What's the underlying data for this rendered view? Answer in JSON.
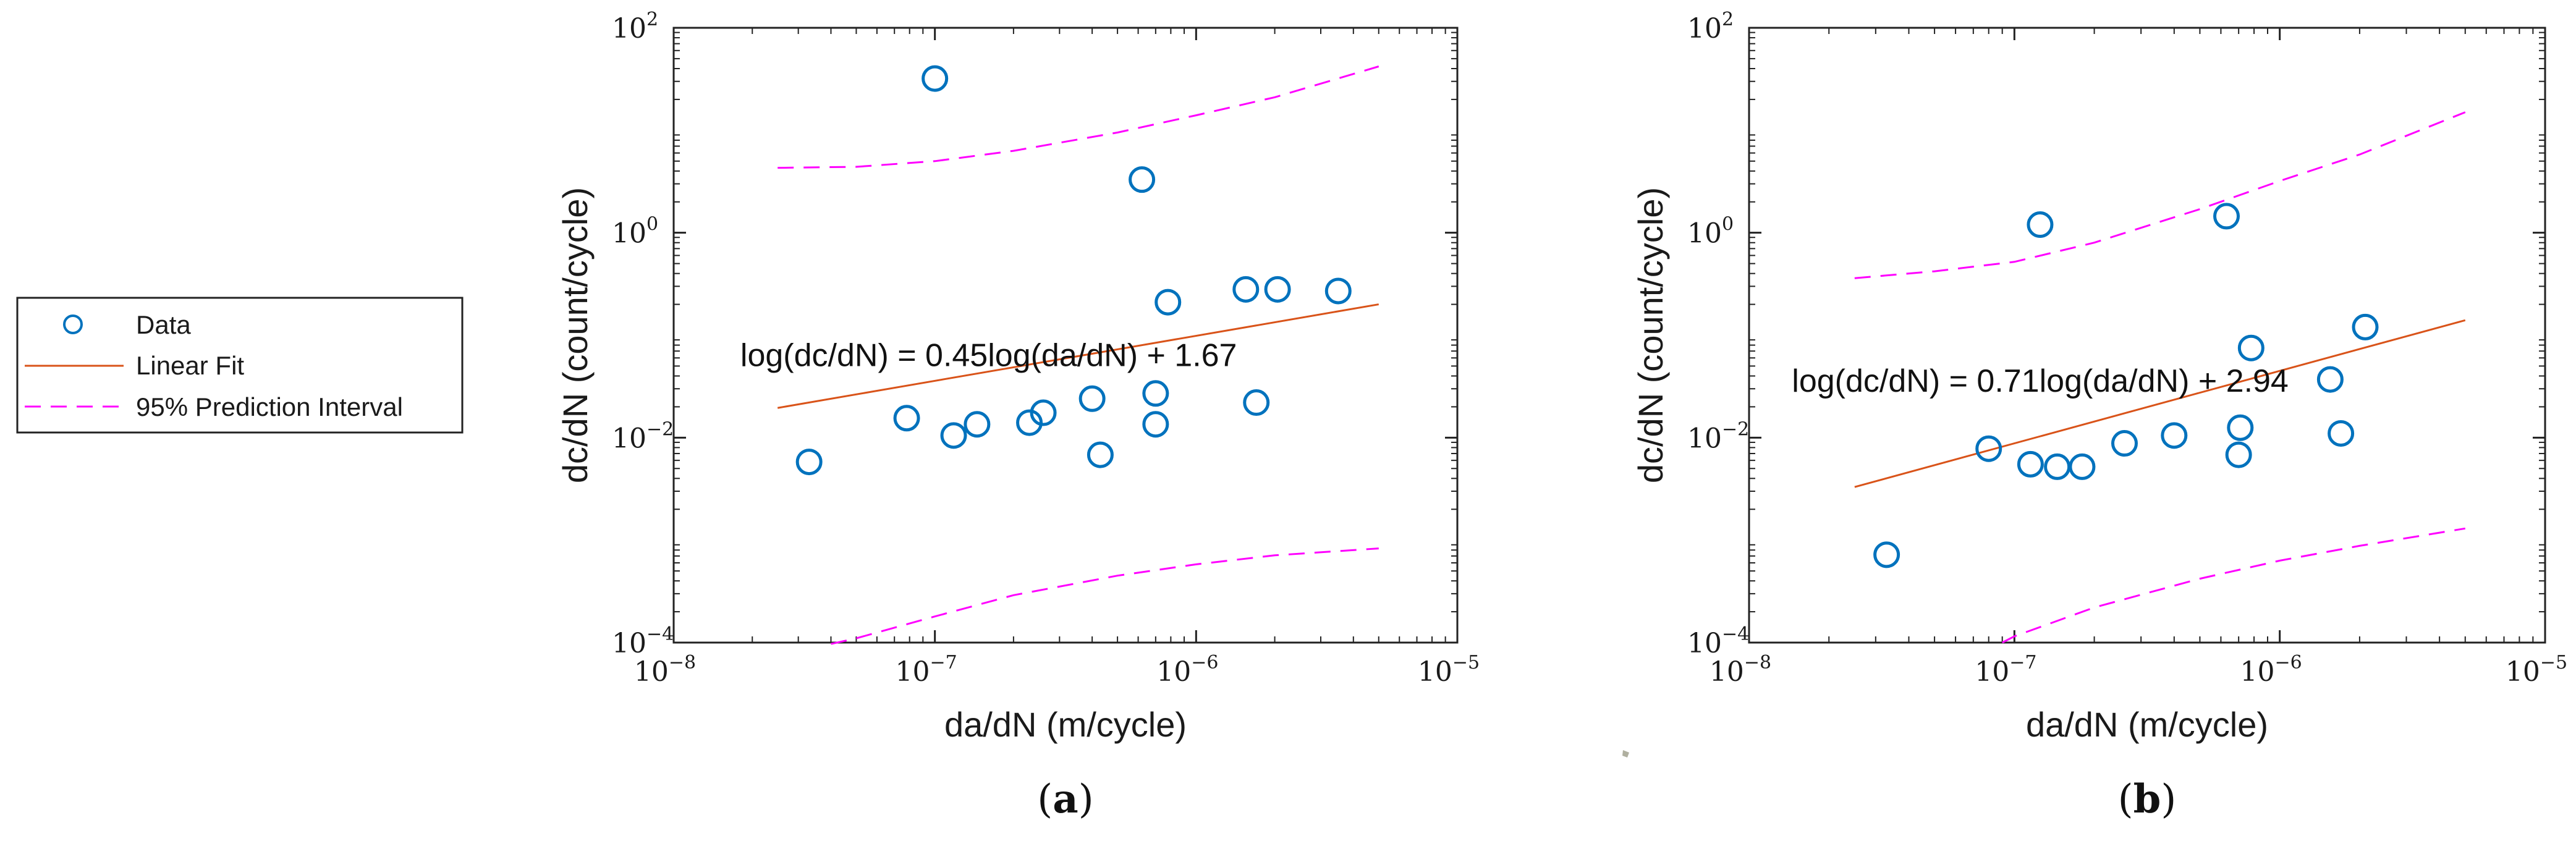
{
  "legend": {
    "entries": [
      {
        "label": "Data",
        "style": "marker",
        "color": "#0072bd"
      },
      {
        "label": "Linear Fit",
        "style": "line",
        "color": "#d95319"
      },
      {
        "label": "95% Prediction Interval",
        "style": "dashed",
        "color": "#ff00ff"
      }
    ]
  },
  "chart_data": [
    {
      "panel_label": "(a)",
      "panel_letter": "a",
      "type": "scatter",
      "xscale": "log",
      "yscale": "log",
      "xlabel": "da/dN (m/cycle)",
      "ylabel": "dc/dN (count/cycle)",
      "xlim": [
        1e-08,
        1e-05
      ],
      "ylim": [
        0.0001,
        100
      ],
      "xticks": [
        {
          "base": "10",
          "exp": "−8",
          "value": 1e-08
        },
        {
          "base": "10",
          "exp": "−7",
          "value": 1e-07
        },
        {
          "base": "10",
          "exp": "−6",
          "value": 1e-06
        },
        {
          "base": "10",
          "exp": "−5",
          "value": 1e-05
        }
      ],
      "yticks": [
        {
          "base": "10",
          "exp": "−4",
          "value": 0.0001
        },
        {
          "base": "10",
          "exp": "−2",
          "value": 0.01
        },
        {
          "base": "10",
          "exp": "0",
          "value": 1
        },
        {
          "base": "10",
          "exp": "2",
          "value": 100
        }
      ],
      "grid": false,
      "equation": "log(dc/dN) = 0.45log(da/dN) + 1.67",
      "equation_pos": [
        1.8e-08,
        0.05
      ],
      "points": [
        [
          3.3e-08,
          0.0058
        ],
        [
          7.8e-08,
          0.0155
        ],
        [
          1e-07,
          32.0
        ],
        [
          1.18e-07,
          0.0105
        ],
        [
          1.45e-07,
          0.0135
        ],
        [
          2.3e-07,
          0.014
        ],
        [
          2.6e-07,
          0.0175
        ],
        [
          4e-07,
          0.024
        ],
        [
          4.3e-07,
          0.0068
        ],
        [
          6.2e-07,
          3.3
        ],
        [
          7e-07,
          0.0135
        ],
        [
          7e-07,
          0.027
        ],
        [
          7.8e-07,
          0.21
        ],
        [
          1.55e-06,
          0.28
        ],
        [
          1.7e-06,
          0.022
        ],
        [
          2.05e-06,
          0.28
        ],
        [
          3.5e-06,
          0.27
        ]
      ],
      "fit_line": [
        [
          2.5e-08,
          0.0195
        ],
        [
          5e-06
        ],
        [
          0.2
        ]
      ],
      "fit": {
        "x": [
          2.5e-08,
          5e-06
        ],
        "y": [
          0.0195,
          0.2
        ]
      },
      "pi_upper": {
        "x": [
          2.5e-08,
          5e-08,
          1e-07,
          2e-07,
          5e-07,
          1e-06,
          2e-06,
          5e-06
        ],
        "y": [
          4.3,
          4.4,
          5.0,
          6.3,
          9.5,
          14.0,
          21.0,
          42.0
        ]
      },
      "pi_lower": {
        "x": [
          4e-08,
          5e-08,
          1e-07,
          2e-07,
          5e-07,
          1e-06,
          2e-06,
          5e-06
        ],
        "y": [
          9.7e-05,
          0.00011,
          0.00018,
          0.00029,
          0.00045,
          0.00058,
          0.00071,
          0.00083
        ]
      }
    },
    {
      "panel_label": "(b)",
      "panel_letter": "b",
      "type": "scatter",
      "xscale": "log",
      "yscale": "log",
      "xlabel": "da/dN (m/cycle)",
      "ylabel": "dc/dN (count/cycle)",
      "xlim": [
        1e-08,
        1e-05
      ],
      "ylim": [
        0.0001,
        100
      ],
      "xticks": [
        {
          "base": "10",
          "exp": "−8",
          "value": 1e-08
        },
        {
          "base": "10",
          "exp": "−7",
          "value": 1e-07
        },
        {
          "base": "10",
          "exp": "−6",
          "value": 1e-06
        },
        {
          "base": "10",
          "exp": "−5",
          "value": 1e-05
        }
      ],
      "yticks": [
        {
          "base": "10",
          "exp": "−4",
          "value": 0.0001
        },
        {
          "base": "10",
          "exp": "−2",
          "value": 0.01
        },
        {
          "base": "10",
          "exp": "0",
          "value": 1
        },
        {
          "base": "10",
          "exp": "2",
          "value": 100
        }
      ],
      "grid": false,
      "equation": "log(dc/dN) = 0.71log(da/dN) + 2.94",
      "equation_pos": [
        1.45e-08,
        0.028
      ],
      "points": [
        [
          3.3e-08,
          0.00072
        ],
        [
          8e-08,
          0.0078
        ],
        [
          1.15e-07,
          0.0055
        ],
        [
          1.25e-07,
          1.2
        ],
        [
          1.45e-07,
          0.0052
        ],
        [
          1.8e-07,
          0.0052
        ],
        [
          2.6e-07,
          0.0088
        ],
        [
          4e-07,
          0.0105
        ],
        [
          6.3e-07,
          1.45
        ],
        [
          7e-07,
          0.0068
        ],
        [
          7.1e-07,
          0.0125
        ],
        [
          7.8e-07,
          0.075
        ],
        [
          1.55e-06,
          0.037
        ],
        [
          1.7e-06,
          0.011
        ],
        [
          2.1e-06,
          0.12
        ]
      ],
      "fit": {
        "x": [
          2.5e-08,
          5e-06
        ],
        "y": [
          0.0033,
          0.14
        ]
      },
      "pi_upper": {
        "x": [
          2.5e-08,
          5e-08,
          1e-07,
          2e-07,
          5e-07,
          1e-06,
          2e-06,
          5e-06
        ],
        "y": [
          0.36,
          0.42,
          0.52,
          0.8,
          1.7,
          3.2,
          5.8,
          15.0
        ]
      },
      "pi_lower": {
        "x": [
          9e-08,
          1e-07,
          2e-07,
          5e-07,
          1e-06,
          2e-06,
          5e-06
        ],
        "y": [
          0.0001,
          0.000115,
          0.00022,
          0.00042,
          0.00063,
          0.00088,
          0.0013
        ]
      }
    }
  ]
}
